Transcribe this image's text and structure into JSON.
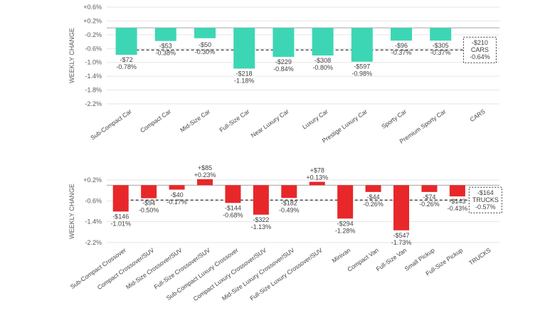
{
  "chart_data": [
    {
      "type": "bar",
      "ylabel": "WEEKLY CHANGE",
      "ylim": [
        -2.2,
        0.6
      ],
      "yticks": [
        0.6,
        0.2,
        -0.2,
        -0.6,
        -1.0,
        -1.4,
        -1.8,
        -2.2
      ],
      "ytick_labels": [
        "+0.6%",
        "+0.2%",
        "-0.2%",
        "-0.6%",
        "-1.0%",
        "-1.4%",
        "-1.8%",
        "-2.2%"
      ],
      "grid": true,
      "color": "#3dd6b5",
      "categories": [
        "Sub-Compact Car",
        "Compact Car",
        "Mid-Size Car",
        "Full-Size Car",
        "Near Luxury Car",
        "Luxury Car",
        "Prestige Luxury Car",
        "Sporty Car",
        "Premium Sporty Car",
        "CARS"
      ],
      "values": [
        -0.78,
        -0.38,
        -0.3,
        -1.18,
        -0.84,
        -0.8,
        -0.98,
        -0.37,
        -0.37,
        null
      ],
      "dollar_labels": [
        "-$72",
        "-$53",
        "-$50",
        "-$218",
        "-$229",
        "-$308",
        "-$597",
        "-$96",
        "-$305"
      ],
      "percent_labels": [
        "-0.78%",
        "-0.38%",
        "-0.30%",
        "-1.18%",
        "-0.84%",
        "-0.80%",
        "-0.98%",
        "-0.37%",
        "-0.37%"
      ],
      "average": {
        "value": -0.64,
        "dollar": "-$210",
        "name": "CARS",
        "percent": "-0.64%"
      }
    },
    {
      "type": "bar",
      "ylabel": "WEEKLY CHANGE",
      "ylim": [
        -2.2,
        0.2
      ],
      "yticks": [
        0.2,
        -0.6,
        -1.4,
        -2.2
      ],
      "ytick_labels": [
        "+0.2%",
        "-0.6%",
        "-1.4%",
        "-2.2%"
      ],
      "grid": true,
      "color": "#e8272a",
      "categories": [
        "Sub-Compact Crossover",
        "Compact Crossover/SUV",
        "Mid-Size Crossover/SUV",
        "Full-Size Crossover/SUV",
        "Sub-Compact Luxury Crossover",
        "Compact Luxury Crossover/SUV",
        "Mid-Size Luxury Crossover/SUV",
        "Full-Size Luxury Crossover/SUV",
        "Minivan",
        "Compact Van",
        "Full-Size Van",
        "Small Pickup",
        "Full-Size Pickup",
        "TRUCKS"
      ],
      "values": [
        -1.01,
        -0.5,
        -0.17,
        0.23,
        -0.68,
        -1.13,
        -0.49,
        0.13,
        -1.28,
        -0.26,
        -1.73,
        -0.26,
        -0.43,
        null
      ],
      "dollar_labels": [
        "-$146",
        "-$94",
        "-$40",
        "+$85",
        "-$144",
        "-$322",
        "-$182",
        "+$78",
        "-$294",
        "-$44",
        "-$547",
        "-$74",
        "-$143"
      ],
      "percent_labels": [
        "-1.01%",
        "-0.50%",
        "-0.17%",
        "+0.23%",
        "-0.68%",
        "-1.13%",
        "-0.49%",
        "+0.13%",
        "-1.28%",
        "-0.26%",
        "-1.73%",
        "-0.26%",
        "-0.43%"
      ],
      "average": {
        "value": -0.57,
        "dollar": "-$164",
        "name": "TRUCKS",
        "percent": "-0.57%"
      }
    }
  ]
}
